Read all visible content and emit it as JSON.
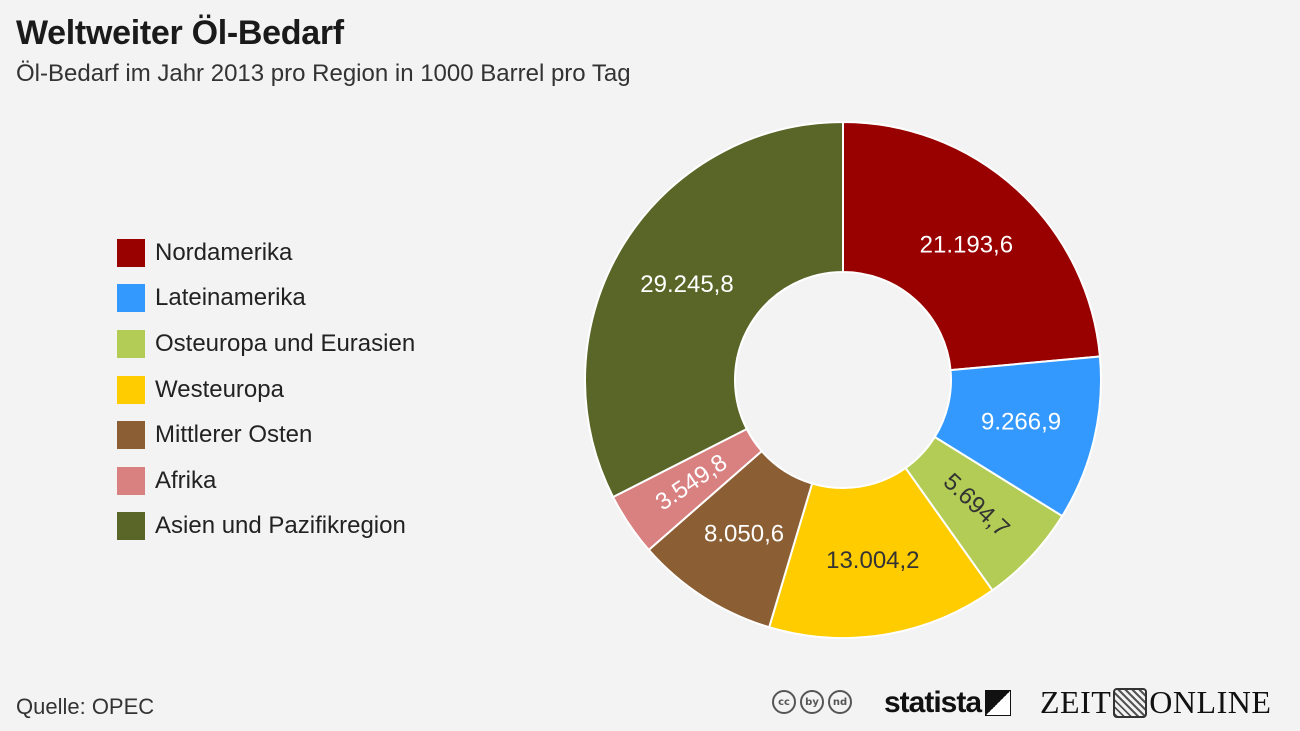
{
  "title": "Weltweiter Öl-Bedarf",
  "subtitle": "Öl-Bedarf im Jahr 2013 pro Region in 1000 Barrel pro Tag",
  "source": "Quelle: OPEC",
  "branding": {
    "statista": "statista",
    "zeit_left": "ZEIT",
    "zeit_right": "ONLINE",
    "cc_icons": [
      "cc",
      "by",
      "nd"
    ]
  },
  "chart_data": {
    "type": "pie",
    "donut": true,
    "legend_position": "left",
    "categories": [
      "Nordamerika",
      "Lateinamerika",
      "Osteuropa und Eurasien",
      "Westeuropa",
      "Mittlerer Osten",
      "Afrika",
      "Asien und Pazifikregion"
    ],
    "values": [
      21193.6,
      9266.9,
      5694.7,
      13004.2,
      8050.6,
      3549.8,
      29245.8
    ],
    "labels": [
      "21.193,6",
      "9.266,9",
      "5.694,7",
      "13.004,2",
      "8.050,6",
      "3.549,8",
      "29.245,8"
    ],
    "colors": [
      "#990000",
      "#3399ff",
      "#b3cc55",
      "#ffcc00",
      "#8b5e34",
      "#d98080",
      "#5a6628"
    ],
    "label_colors": [
      "#ffffff",
      "#ffffff",
      "#333333",
      "#333333",
      "#ffffff",
      "#ffffff",
      "#ffffff"
    ]
  }
}
